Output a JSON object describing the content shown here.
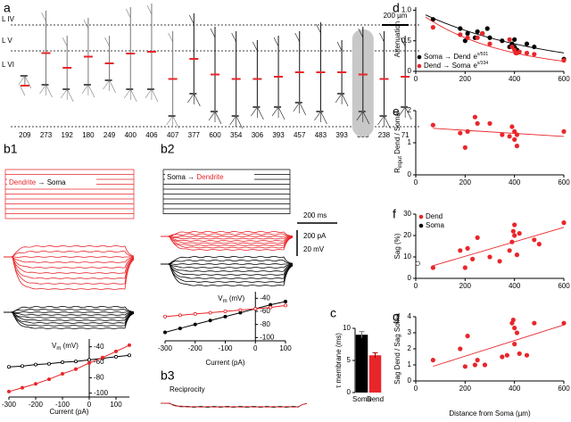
{
  "panels": [
    "a",
    "b1",
    "b2",
    "b3",
    "c",
    "d",
    "e",
    "f",
    "g"
  ],
  "morphology": {
    "layers": [
      "L IV",
      "L V",
      "L VI"
    ],
    "scale_bar": "200 µm",
    "distances": [
      "209",
      "273",
      "192",
      "180",
      "249",
      "400",
      "406",
      "407",
      "377",
      "600",
      "354",
      "306",
      "393",
      "457",
      "483",
      "393",
      "383",
      "238",
      "71"
    ]
  },
  "traces": {
    "b1_label": [
      {
        "text": "Dendrite",
        "color": "#e8262a"
      },
      {
        "text": " → Soma",
        "color": "#000000"
      }
    ],
    "b2_label": [
      {
        "text": "Soma → ",
        "color": "#000000"
      },
      {
        "text": "Dendrite",
        "color": "#e8262a"
      }
    ],
    "b3_label": "Reciprocity",
    "time_scale": "200 ms",
    "current_scale": "200 pA",
    "voltage_scale": "20 mV"
  },
  "chart_data": [
    {
      "type": "line",
      "x_label": "Current (pA)",
      "y_label": "V",
      "y_label_sub": "m",
      "y_label_after": " (mV)",
      "xlim": [
        -300,
        150
      ],
      "ylim": [
        -105,
        -30
      ],
      "xticks": [
        -300,
        -200,
        -100,
        0,
        100
      ],
      "yticks": [
        -40,
        -60,
        -80,
        -100
      ],
      "x": [
        -300,
        -250,
        -200,
        -150,
        -100,
        -50,
        0,
        50,
        100,
        150
      ],
      "series": [
        {
          "color": "#000000",
          "marker": "open",
          "values": [
            -66,
            -65,
            -63,
            -62,
            -60,
            -59,
            -57,
            -55,
            -53,
            -51
          ]
        },
        {
          "color": "#e8262a",
          "marker": "filled",
          "values": [
            -98,
            -93,
            -88,
            -82,
            -75,
            -69,
            -61,
            -54,
            -46,
            -38
          ]
        }
      ]
    },
    {
      "type": "line",
      "x_label": "Current (pA)",
      "y_label": "V",
      "y_label_sub": "m",
      "y_label_after": " (mV)",
      "xlim": [
        -300,
        100
      ],
      "ylim": [
        -105,
        -30
      ],
      "xticks": [
        -300,
        -200,
        -100,
        0,
        100
      ],
      "yticks": [
        -40,
        -60,
        -80,
        -100
      ],
      "x": [
        -300,
        -250,
        -200,
        -150,
        -100,
        -50,
        0,
        50,
        100
      ],
      "series": [
        {
          "color": "#000000",
          "marker": "filled",
          "values": [
            -92,
            -86,
            -80,
            -74,
            -68,
            -62,
            -56,
            -50,
            -45
          ]
        },
        {
          "color": "#e8262a",
          "marker": "open",
          "values": [
            -68,
            -66,
            -64,
            -62,
            -60,
            -58,
            -56,
            -54,
            -51
          ]
        }
      ]
    },
    {
      "type": "bar",
      "y_label": "τ membrane (ms)",
      "categories": [
        "Soma",
        "Dend"
      ],
      "values": [
        9.0,
        5.8
      ],
      "errors": [
        0.5,
        0.4
      ],
      "colors": [
        "#000000",
        "#e8262a"
      ],
      "category_colors": [
        "#000000",
        "#e8262a"
      ],
      "ylim": [
        0,
        10
      ],
      "yticks": [
        0,
        5,
        10
      ]
    },
    {
      "type": "scatter",
      "y_label": "Attenuation",
      "xlim": [
        0,
        600
      ],
      "ylim": [
        0,
        1.05
      ],
      "xticks": [
        0,
        200,
        400,
        600
      ],
      "yticks": [
        0,
        0.5,
        {
          "value": 1,
          "label": "1.0"
        }
      ],
      "series": [
        {
          "name": "Soma → Dend",
          "color": "#000000",
          "fit_base": "e",
          "fit_exponent": "x/501",
          "fit_tau": 501,
          "x": [
            70,
            180,
            200,
            210,
            240,
            250,
            270,
            290,
            300,
            350,
            380,
            390,
            400,
            400,
            410,
            450,
            480,
            600
          ],
          "values": [
            0.85,
            0.7,
            0.5,
            0.62,
            0.55,
            0.65,
            0.62,
            0.7,
            0.55,
            0.5,
            0.4,
            0.45,
            0.52,
            0.4,
            0.35,
            0.45,
            0.4,
            0.2
          ]
        },
        {
          "name": "Dend → Soma",
          "color": "#e8262a",
          "fit_base": "e",
          "fit_exponent": "x/334",
          "fit_tau": 334,
          "x": [
            70,
            180,
            210,
            250,
            270,
            300,
            380,
            390,
            400,
            405,
            410,
            420,
            450,
            480,
            600
          ],
          "values": [
            0.72,
            0.6,
            0.55,
            0.55,
            0.62,
            0.45,
            0.52,
            0.4,
            0.35,
            0.3,
            0.3,
            0.32,
            0.3,
            0.28,
            0.18
          ]
        }
      ]
    },
    {
      "type": "scatter",
      "y_label": "R",
      "y_label_sub": "input",
      "y_label_after": " Dend / Soma",
      "trendline": true,
      "xlim": [
        0,
        600
      ],
      "ylim": [
        0,
        2
      ],
      "xticks": [
        0,
        200,
        400,
        600
      ],
      "yticks": [
        0,
        1,
        2
      ],
      "series": [
        {
          "color": "#e8262a",
          "x": [
            70,
            180,
            200,
            210,
            240,
            250,
            300,
            350,
            380,
            390,
            400,
            410,
            400,
            410,
            600
          ],
          "values": [
            1.55,
            1.3,
            0.85,
            1.35,
            1.8,
            1.6,
            1.6,
            1.25,
            1.2,
            1.5,
            1.1,
            0.9,
            1.35,
            1.25,
            1.35
          ]
        }
      ]
    },
    {
      "type": "scatter",
      "y_label": "Sag (%)",
      "trendline": true,
      "legend": "top-left",
      "xlim": [
        0,
        600
      ],
      "ylim": [
        0,
        30
      ],
      "xticks": [
        0,
        200,
        400,
        600
      ],
      "yticks": [
        0,
        10,
        20,
        30
      ],
      "series": [
        {
          "name": "Dend",
          "color": "#e8262a",
          "x": [
            70,
            180,
            200,
            210,
            230,
            250,
            300,
            340,
            380,
            390,
            395,
            400,
            400,
            410,
            420,
            480,
            500,
            600
          ],
          "values": [
            5,
            13,
            5,
            14,
            9,
            19,
            10,
            8,
            13,
            17,
            22,
            25,
            20,
            11,
            21,
            18,
            16,
            26
          ]
        },
        {
          "name": "Soma",
          "color": "#000000",
          "x": [
            8
          ],
          "values": [
            7
          ],
          "errors": [
            0.8
          ],
          "open": true
        }
      ]
    },
    {
      "type": "scatter",
      "y_label": "Sag Dend / Sag Soma",
      "x_label": "Distance from Soma (µm)",
      "trendline": true,
      "xlim": [
        0,
        600
      ],
      "ylim": [
        0,
        4
      ],
      "xticks": [
        0,
        200,
        400,
        600
      ],
      "yticks": [
        0,
        1,
        2,
        3,
        4
      ],
      "series": [
        {
          "color": "#e8262a",
          "x": [
            70,
            180,
            200,
            210,
            240,
            250,
            280,
            350,
            370,
            390,
            395,
            400,
            400,
            410,
            420,
            450,
            480,
            600
          ],
          "values": [
            1.3,
            2.0,
            0.9,
            2.8,
            1.0,
            1.3,
            1.0,
            1.5,
            1.6,
            3.6,
            3.8,
            3.3,
            2.3,
            3.0,
            1.7,
            1.6,
            3.6,
            3.6
          ]
        }
      ]
    }
  ]
}
